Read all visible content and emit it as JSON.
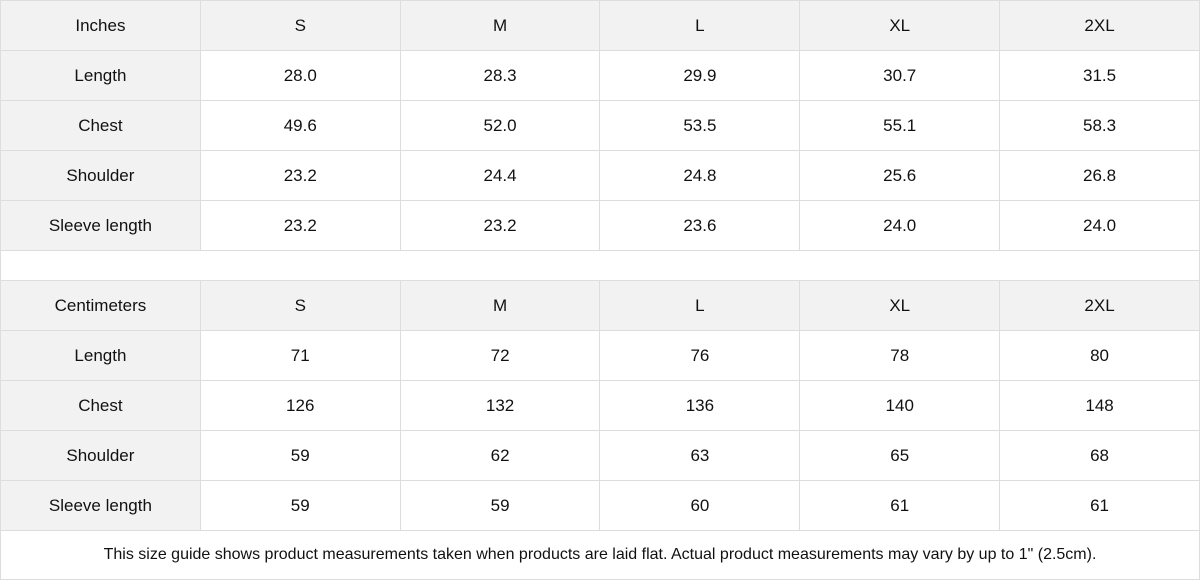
{
  "tables": [
    {
      "unit": "Inches",
      "sizes": [
        "S",
        "M",
        "L",
        "XL",
        "2XL"
      ],
      "rows": [
        {
          "label": "Length",
          "values": [
            "28.0",
            "28.3",
            "29.9",
            "30.7",
            "31.5"
          ]
        },
        {
          "label": "Chest",
          "values": [
            "49.6",
            "52.0",
            "53.5",
            "55.1",
            "58.3"
          ]
        },
        {
          "label": "Shoulder",
          "values": [
            "23.2",
            "24.4",
            "24.8",
            "25.6",
            "26.8"
          ]
        },
        {
          "label": "Sleeve length",
          "values": [
            "23.2",
            "23.2",
            "23.6",
            "24.0",
            "24.0"
          ]
        }
      ]
    },
    {
      "unit": "Centimeters",
      "sizes": [
        "S",
        "M",
        "L",
        "XL",
        "2XL"
      ],
      "rows": [
        {
          "label": "Length",
          "values": [
            "71",
            "72",
            "76",
            "78",
            "80"
          ]
        },
        {
          "label": "Chest",
          "values": [
            "126",
            "132",
            "136",
            "140",
            "148"
          ]
        },
        {
          "label": "Shoulder",
          "values": [
            "59",
            "62",
            "63",
            "65",
            "68"
          ]
        },
        {
          "label": "Sleeve length",
          "values": [
            "59",
            "59",
            "60",
            "61",
            "61"
          ]
        }
      ]
    }
  ],
  "note": "This size guide shows product measurements taken when products are laid flat.  Actual product measurements may vary by up to 1\" (2.5cm).",
  "colors": {
    "header_bg": "#f2f2f2",
    "border": "#dddddd"
  }
}
